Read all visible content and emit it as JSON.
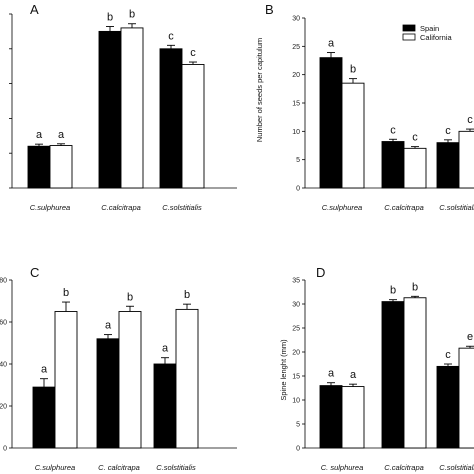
{
  "legend": {
    "spain": "Spain",
    "california": "California"
  },
  "colors": {
    "spain": "#000000",
    "california": "#ffffff",
    "stroke": "#000000"
  },
  "chart_data": [
    {
      "type": "bar",
      "panel_label": "A",
      "categories": [
        "C.sulphurea",
        "C.calcitrapa",
        "C.solstitialis"
      ],
      "series": [
        {
          "name": "Spain",
          "values": [
            1.2,
            4.5,
            4.0
          ],
          "errors": [
            0.06,
            0.14,
            0.1
          ],
          "letters": [
            "a",
            "b",
            "c"
          ]
        },
        {
          "name": "California",
          "values": [
            1.22,
            4.6,
            3.55
          ],
          "errors": [
            0.05,
            0.12,
            0.07
          ],
          "letters": [
            "a",
            "b",
            "c"
          ]
        }
      ],
      "ylim": [
        0,
        5
      ],
      "yticks": [
        0,
        1,
        2,
        3,
        4,
        5
      ],
      "ytick_labels": [
        "",
        "",
        "",
        "",
        "",
        ""
      ],
      "ylabel": ""
    },
    {
      "type": "bar",
      "panel_label": "B",
      "categories": [
        "C.sulphurea",
        "C.calcitrapa",
        "C.solstitialis"
      ],
      "series": [
        {
          "name": "Spain",
          "values": [
            23,
            8.2,
            8
          ],
          "errors": [
            0.9,
            0.4,
            0.5
          ],
          "letters": [
            "a",
            "c",
            "c"
          ]
        },
        {
          "name": "California",
          "values": [
            18.5,
            7,
            10
          ],
          "errors": [
            0.8,
            0.3,
            0.4
          ],
          "letters": [
            "b",
            "c",
            "c"
          ]
        }
      ],
      "ylim": [
        0,
        30
      ],
      "yticks": [
        0,
        5,
        10,
        15,
        20,
        25,
        30
      ],
      "ytick_labels": [
        "0",
        "5",
        "10",
        "15",
        "20",
        "25",
        "30"
      ],
      "ylabel": "Number of seeds per capitulum"
    },
    {
      "type": "bar",
      "panel_label": "C",
      "categories": [
        "C.sulphurea",
        "C. calcitrapa",
        "C.solstitialis"
      ],
      "series": [
        {
          "name": "Spain",
          "values": [
            29,
            52,
            40
          ],
          "errors": [
            4,
            2,
            3
          ],
          "letters": [
            "a",
            "a",
            "a"
          ]
        },
        {
          "name": "California",
          "values": [
            65,
            65,
            66
          ],
          "errors": [
            4.5,
            2.5,
            2.5
          ],
          "letters": [
            "b",
            "b",
            "b"
          ]
        }
      ],
      "ylim": [
        0,
        80
      ],
      "yticks": [
        0,
        20,
        40,
        60,
        80
      ],
      "ytick_labels": [
        "0",
        "20",
        "40",
        "60",
        "80"
      ],
      "ylabel": ""
    },
    {
      "type": "bar",
      "panel_label": "D",
      "categories": [
        "C. sulphurea",
        "C.calcitrapa",
        "C.solstitialis"
      ],
      "series": [
        {
          "name": "Spain",
          "values": [
            13,
            30.5,
            17
          ],
          "errors": [
            0.6,
            0.4,
            0.5
          ],
          "letters": [
            "a",
            "b",
            "c"
          ]
        },
        {
          "name": "California",
          "values": [
            12.8,
            31.3,
            20.8
          ],
          "errors": [
            0.5,
            0.3,
            0.4
          ],
          "letters": [
            "a",
            "b",
            "e"
          ]
        }
      ],
      "ylim": [
        0,
        35
      ],
      "yticks": [
        0,
        5,
        10,
        15,
        20,
        25,
        30,
        35
      ],
      "ytick_labels": [
        "0",
        "5",
        "10",
        "15",
        "20",
        "25",
        "30",
        "35"
      ],
      "ylabel": "Spine lenght (mm)"
    }
  ]
}
